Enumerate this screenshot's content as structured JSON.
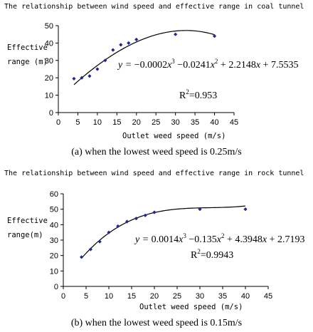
{
  "chart_data": [
    {
      "type": "scatter",
      "title": "The relationship between wind speed and effective range in coal tunnel",
      "ylabel_lines": [
        "Effective",
        "range (m)"
      ],
      "xlabel": "Outlet weed speed (m/s)",
      "xlim": [
        0,
        45
      ],
      "ylim": [
        0,
        50
      ],
      "xticks": [
        0,
        5,
        10,
        15,
        20,
        25,
        30,
        35,
        40,
        45
      ],
      "yticks": [
        0,
        10,
        20,
        30,
        40,
        50
      ],
      "points": [
        [
          4,
          19.5
        ],
        [
          6,
          20
        ],
        [
          8,
          21
        ],
        [
          10,
          25
        ],
        [
          12,
          30
        ],
        [
          14,
          36
        ],
        [
          16,
          39
        ],
        [
          18,
          40
        ],
        [
          20,
          42
        ],
        [
          30,
          45
        ],
        [
          40,
          44
        ]
      ],
      "trendline": {
        "coefficients": [
          -0.0002,
          -0.0241,
          2.2148,
          7.5535
        ],
        "x_range": [
          4,
          40
        ]
      },
      "equation": {
        "lhs": "y = ",
        "c3": "−0.0002",
        "c2": "−0.0241",
        "c1": "+ 2.2148",
        "c0": "+ 7.5535",
        "r2": "=0.953"
      },
      "grid": false,
      "legend": "none",
      "marker_color": "#1f2a80",
      "caption": "(a)  when the lowest weed speed is 0.25m/s"
    },
    {
      "type": "scatter",
      "title": "The relationship between wind speed and effective range in rock tunnel",
      "ylabel_lines": [
        "Effective",
        "range(m)"
      ],
      "xlabel": "Outlet weed speed (m/s)",
      "xlim": [
        0,
        45
      ],
      "ylim": [
        0,
        60
      ],
      "xticks": [
        0,
        5,
        10,
        15,
        20,
        25,
        30,
        35,
        40,
        45
      ],
      "yticks": [
        0,
        10,
        20,
        30,
        40,
        50,
        60
      ],
      "points": [
        [
          4,
          19
        ],
        [
          6,
          24
        ],
        [
          8,
          29
        ],
        [
          10,
          35
        ],
        [
          12,
          39
        ],
        [
          14,
          42
        ],
        [
          16,
          44
        ],
        [
          18,
          46
        ],
        [
          20,
          48
        ],
        [
          30,
          50
        ],
        [
          40,
          50
        ]
      ],
      "trendline": {
        "coefficients": [
          0.0014,
          -0.135,
          4.3948,
          2.7193
        ],
        "x_range": [
          4,
          40
        ]
      },
      "equation": {
        "lhs": "y = ",
        "c3": "0.0014",
        "c2": "−0.135",
        "c1": "+ 4.3948",
        "c0": "+ 2.7193",
        "r2": "=0.9943"
      },
      "grid": false,
      "legend": "none",
      "marker_color": "#1f2a80",
      "caption": "(b)  when the lowest weed speed is 0.15m/s"
    }
  ]
}
